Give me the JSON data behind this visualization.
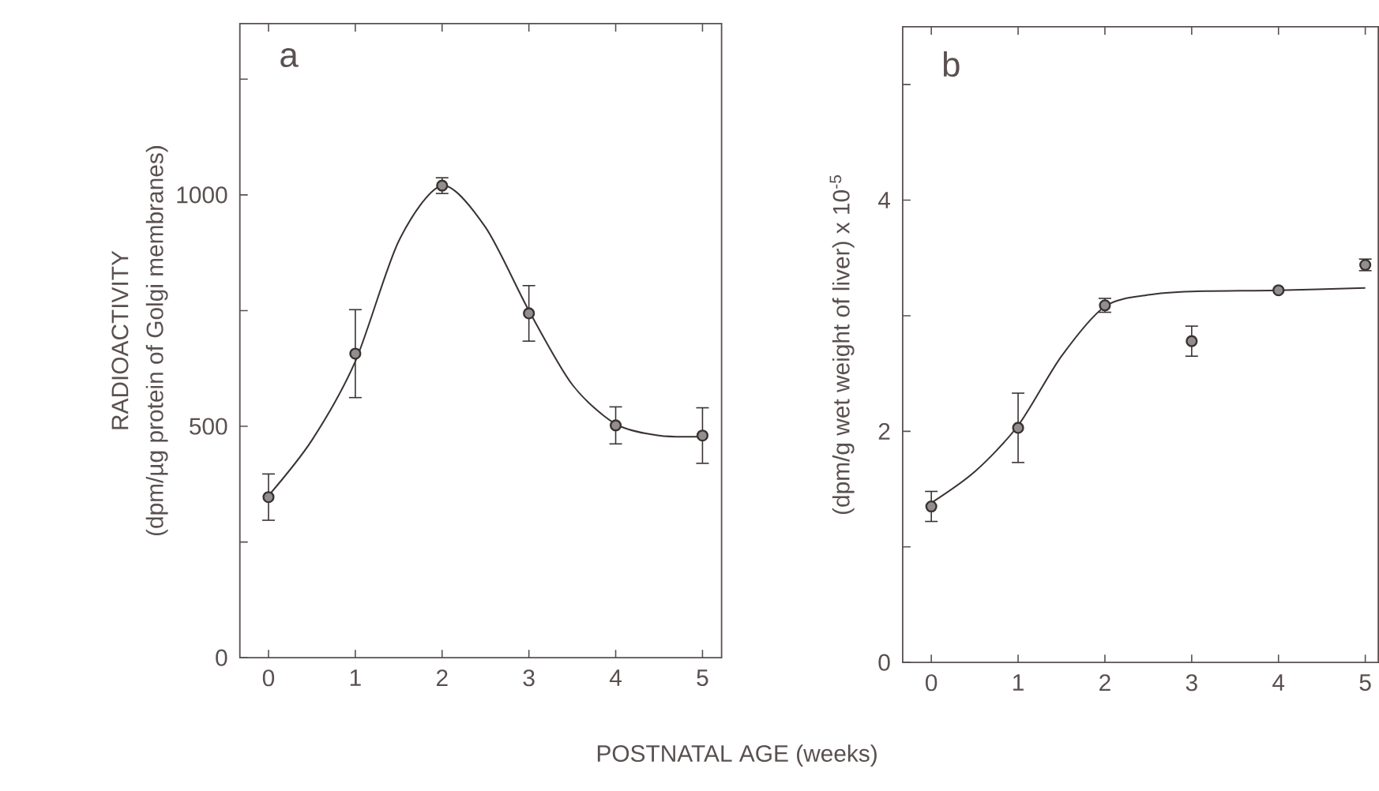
{
  "chart_data": [
    {
      "type": "scatter",
      "title": "a",
      "xlabel": "POSTNATAL AGE (weeks)",
      "ylabel": "(dpm/µg protein of Golgi membranes)",
      "annotations": [
        "RADIOACTIVITY"
      ],
      "x": [
        0,
        1,
        2,
        3,
        4,
        5
      ],
      "xlim": [
        -0.33,
        5.22
      ],
      "xticks": [
        0,
        1,
        2,
        3,
        4,
        5
      ],
      "ylim": [
        0,
        1370
      ],
      "yticks": [
        0,
        {
          "value": 250,
          "label": null
        },
        500,
        {
          "value": 750,
          "label": null
        },
        1000,
        {
          "value": 1250,
          "label": null
        }
      ],
      "grid": false,
      "marker": "circle",
      "series": [
        {
          "color": "#3a3232",
          "values": [
            347,
            657,
            1020,
            744,
            502,
            480
          ],
          "errors": [
            50,
            95,
            17,
            60,
            40,
            60
          ]
        },
        {
          "type": "line",
          "marker": "none",
          "color": "#3a3232",
          "x": [
            0,
            0.5,
            1,
            1.5,
            2,
            2.5,
            3,
            3.5,
            4,
            4.5,
            5
          ],
          "values": [
            350,
            470,
            640,
            900,
            1020,
            930,
            750,
            590,
            505,
            480,
            478
          ]
        }
      ]
    },
    {
      "type": "scatter",
      "title": "b",
      "ylabel": "(dpm/g wet weight of liver) x 10$^{-5}$",
      "x": [
        0,
        1,
        2,
        3,
        4,
        5
      ],
      "xlim": [
        -0.33,
        5.15
      ],
      "xticks": [
        0,
        1,
        2,
        3,
        4,
        5
      ],
      "ylim": [
        0,
        5.5
      ],
      "yticks": [
        0,
        {
          "value": 1,
          "label": null
        },
        2,
        {
          "value": 3,
          "label": null
        },
        4,
        {
          "value": 5,
          "label": null
        }
      ],
      "grid": false,
      "marker": "circle",
      "series": [
        {
          "color": "#3a3232",
          "values": [
            1.35,
            2.03,
            3.09,
            2.78,
            3.22,
            3.44
          ],
          "errors": [
            0.13,
            0.3,
            0.06,
            0.13,
            null,
            0.05
          ]
        },
        {
          "type": "line",
          "marker": "none",
          "color": "#3a3232",
          "x": [
            0,
            0.5,
            1,
            1.5,
            2,
            2.5,
            3,
            4,
            5
          ],
          "values": [
            1.38,
            1.65,
            2.05,
            2.65,
            3.08,
            3.18,
            3.21,
            3.22,
            3.24
          ]
        }
      ]
    }
  ]
}
